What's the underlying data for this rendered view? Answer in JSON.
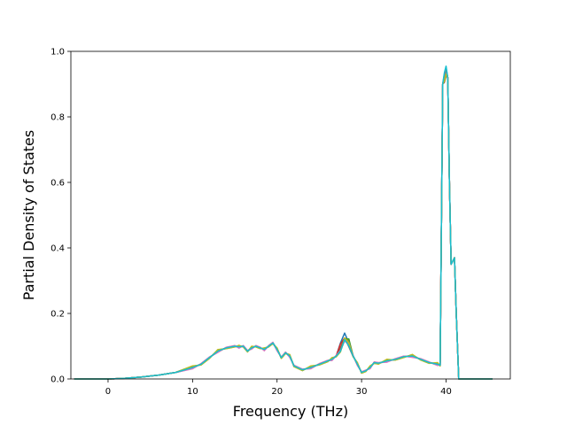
{
  "chart_data": {
    "type": "line",
    "title": "",
    "xlabel": "Frequency (THz)",
    "ylabel": "Partial Density of States",
    "xlim": [
      -4.4,
      47.6
    ],
    "ylim": [
      0.0,
      1.0
    ],
    "x_ticks": [
      0,
      10,
      20,
      30,
      40
    ],
    "x_tick_labels": [
      "0",
      "10",
      "20",
      "30",
      "40"
    ],
    "y_ticks": [
      0.0,
      0.2,
      0.4,
      0.6,
      0.8,
      1.0
    ],
    "y_tick_labels": [
      "0.0",
      "0.2",
      "0.4",
      "0.6",
      "0.8",
      "1.0"
    ],
    "grid": false,
    "legend": "none",
    "base_curve": {
      "x": [
        -4.0,
        0.0,
        2.0,
        4.0,
        6.0,
        8.0,
        10.0,
        11.0,
        12.0,
        13.0,
        14.0,
        15.0,
        15.5,
        16.0,
        16.5,
        17.0,
        17.5,
        18.0,
        18.5,
        19.0,
        19.5,
        20.0,
        20.5,
        21.0,
        21.5,
        22.0,
        23.0,
        24.0,
        25.0,
        26.0,
        26.5,
        27.0,
        27.5,
        28.0,
        28.5,
        29.0,
        29.5,
        30.0,
        30.5,
        31.0,
        31.5,
        32.0,
        33.0,
        34.0,
        35.0,
        36.0,
        37.0,
        38.0,
        39.0,
        39.3,
        39.6,
        39.8,
        40.0,
        40.2,
        40.4,
        40.6,
        40.8,
        41.0,
        41.2,
        41.5,
        42.0,
        44.0,
        45.5
      ],
      "y": [
        0.0,
        0.0,
        0.002,
        0.006,
        0.012,
        0.02,
        0.035,
        0.045,
        0.065,
        0.085,
        0.095,
        0.1,
        0.098,
        0.1,
        0.085,
        0.095,
        0.1,
        0.095,
        0.09,
        0.1,
        0.11,
        0.09,
        0.065,
        0.08,
        0.07,
        0.04,
        0.028,
        0.035,
        0.045,
        0.055,
        0.06,
        0.07,
        0.085,
        0.12,
        0.1,
        0.07,
        0.045,
        0.02,
        0.025,
        0.035,
        0.05,
        0.048,
        0.055,
        0.06,
        0.068,
        0.07,
        0.06,
        0.05,
        0.045,
        0.042,
        0.9,
        0.93,
        0.95,
        0.92,
        0.6,
        0.35,
        0.36,
        0.37,
        0.2,
        0.0,
        0.0,
        0.0,
        0.0
      ]
    },
    "series": [
      {
        "color": "#1f77b4",
        "dy": 0.0,
        "peak": 0.94,
        "spike_x": 28.0
      },
      {
        "color": "#ff7f0e",
        "dy": -0.003,
        "peak": 0.935,
        "spike_x": 28.2
      },
      {
        "color": "#2ca02c",
        "dy": 0.002,
        "peak": 0.945,
        "spike_x": 28.3
      },
      {
        "color": "#d62728",
        "dy": -0.002,
        "peak": 0.93,
        "spike_x": 27.9
      },
      {
        "color": "#9467bd",
        "dy": 0.003,
        "peak": 0.95,
        "spike_x": 28.1
      },
      {
        "color": "#8c564b",
        "dy": 0.004,
        "peak": 0.925,
        "spike_x": 28.0
      },
      {
        "color": "#e377c2",
        "dy": -0.004,
        "peak": 0.94,
        "spike_x": 28.2
      },
      {
        "color": "#7f7f7f",
        "dy": 0.001,
        "peak": 0.945,
        "spike_x": 28.4
      },
      {
        "color": "#bcbd22",
        "dy": 0.005,
        "peak": 0.93,
        "spike_x": 28.6
      },
      {
        "color": "#17becf",
        "dy": 0.0,
        "peak": 0.955,
        "spike_x": 28.3
      }
    ]
  }
}
